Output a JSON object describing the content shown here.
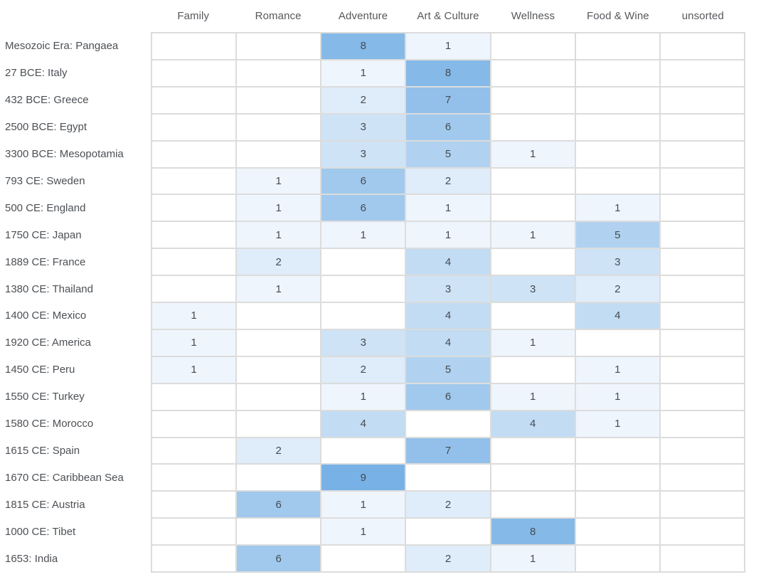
{
  "chart_data": {
    "type": "heatmap",
    "title": "",
    "columns": [
      "Family",
      "Romance",
      "Adventure",
      "Art & Culture",
      "Wellness",
      "Food & Wine",
      "unsorted"
    ],
    "rows": [
      {
        "label": "Mesozoic Era: Pangaea",
        "values": [
          null,
          null,
          8,
          1,
          null,
          null,
          null
        ]
      },
      {
        "label": "27 BCE: Italy",
        "values": [
          null,
          null,
          1,
          8,
          null,
          null,
          null
        ]
      },
      {
        "label": "432 BCE: Greece",
        "values": [
          null,
          null,
          2,
          7,
          null,
          null,
          null
        ]
      },
      {
        "label": "2500 BCE: Egypt",
        "values": [
          null,
          null,
          3,
          6,
          null,
          null,
          null
        ]
      },
      {
        "label": "3300 BCE: Mesopotamia",
        "values": [
          null,
          null,
          3,
          5,
          1,
          null,
          null
        ]
      },
      {
        "label": "793 CE: Sweden",
        "values": [
          null,
          1,
          6,
          2,
          null,
          null,
          null
        ]
      },
      {
        "label": "500 CE: England",
        "values": [
          null,
          1,
          6,
          1,
          null,
          1,
          null
        ]
      },
      {
        "label": "1750 CE: Japan",
        "values": [
          null,
          1,
          1,
          1,
          1,
          5,
          null
        ]
      },
      {
        "label": "1889 CE: France",
        "values": [
          null,
          2,
          null,
          4,
          null,
          3,
          null
        ]
      },
      {
        "label": "1380 CE: Thailand",
        "values": [
          null,
          1,
          null,
          3,
          3,
          2,
          null
        ]
      },
      {
        "label": "1400 CE: Mexico",
        "values": [
          1,
          null,
          null,
          4,
          null,
          4,
          null
        ]
      },
      {
        "label": "1920 CE: America",
        "values": [
          1,
          null,
          3,
          4,
          1,
          null,
          null
        ]
      },
      {
        "label": "1450 CE: Peru",
        "values": [
          1,
          null,
          2,
          5,
          null,
          1,
          null
        ]
      },
      {
        "label": "1550 CE: Turkey",
        "values": [
          null,
          null,
          1,
          6,
          1,
          1,
          null
        ]
      },
      {
        "label": "1580 CE: Morocco",
        "values": [
          null,
          null,
          4,
          null,
          4,
          1,
          null
        ]
      },
      {
        "label": "1615 CE: Spain",
        "values": [
          null,
          2,
          null,
          7,
          null,
          null,
          null
        ]
      },
      {
        "label": "1670 CE: Caribbean Sea",
        "values": [
          null,
          null,
          9,
          null,
          null,
          null,
          null
        ]
      },
      {
        "label": "1815 CE: Austria",
        "values": [
          null,
          6,
          1,
          2,
          null,
          null,
          null
        ]
      },
      {
        "label": "1000 CE: Tibet",
        "values": [
          null,
          null,
          1,
          null,
          8,
          null,
          null
        ]
      },
      {
        "label": "1653: India",
        "values": [
          null,
          6,
          null,
          2,
          1,
          null,
          null
        ]
      }
    ],
    "value_range": [
      1,
      9
    ],
    "value_colors": {
      "1": "#eff5fc",
      "2": "#dfecf9",
      "3": "#cfe3f6",
      "4": "#c2dcf3",
      "5": "#b0d2f0",
      "6": "#a0c9ed",
      "7": "#92c0ea",
      "8": "#85b9e8",
      "9": "#78b1e6"
    },
    "empty_color": "#ffffff",
    "grid_line_color": "#dcdcdc",
    "header_text_color": "#55585c",
    "row_label_color": "#4c5055",
    "cell_text_color": "#454b52",
    "layout": {
      "grid_on": true,
      "legend": "none"
    }
  }
}
